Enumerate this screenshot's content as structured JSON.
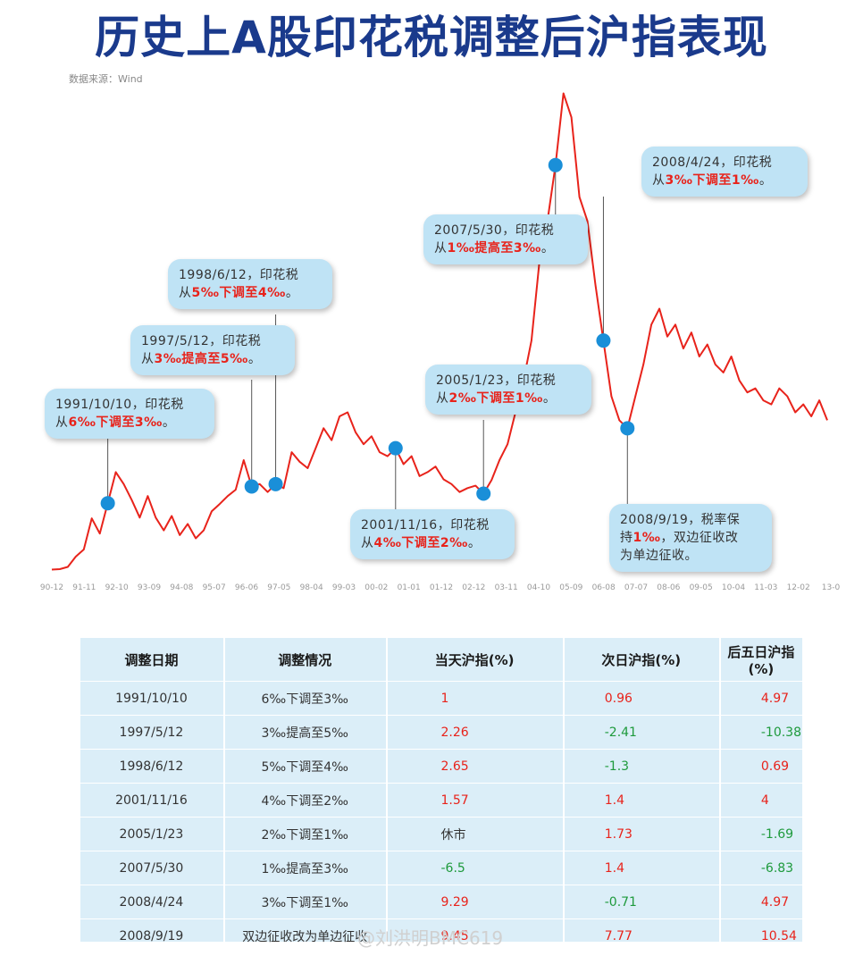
{
  "title": "历史上A股印花税调整后沪指表现",
  "source": "数据来源：Wind",
  "colors": {
    "line": "#e8231b",
    "marker": "#1a8fd8",
    "callout_bg": "#bfe3f5",
    "title": "#1a3a8c",
    "up": "#e8231b",
    "down": "#1e9a3c"
  },
  "chart_data": {
    "type": "line",
    "title": "历史上A股印花税调整后沪指表现",
    "xlabel": "",
    "ylabel": "",
    "x_ticks": [
      "90-12",
      "91-11",
      "92-10",
      "93-09",
      "94-08",
      "95-07",
      "96-06",
      "97-05",
      "98-04",
      "99-03",
      "00-02",
      "01-01",
      "01-12",
      "02-12",
      "03-11",
      "04-10",
      "05-09",
      "06-08",
      "07-07",
      "08-06",
      "09-05",
      "10-04",
      "11-03",
      "12-02",
      "13-0"
    ],
    "series": [
      {
        "values": [
          128,
          134,
          162,
          290,
          380,
          770,
          580,
          960,
          1350,
          1200,
          1000,
          780,
          1050,
          780,
          620,
          800,
          560,
          700,
          520,
          620,
          860,
          950,
          1050,
          1130,
          1500,
          1170,
          1200,
          1100,
          1200,
          1150,
          1600,
          1480,
          1400,
          1650,
          1900,
          1750,
          2050,
          2100,
          1850,
          1700,
          1800,
          1600,
          1550,
          1650,
          1450,
          1550,
          1300,
          1350,
          1420,
          1260,
          1200,
          1100,
          1150,
          1180,
          1080,
          1250,
          1500,
          1700,
          2100,
          2500,
          3000,
          4000,
          4500,
          5200,
          6100,
          5800,
          4800,
          4500,
          3700,
          3000,
          2300,
          2000,
          1900,
          2300,
          2700,
          3200,
          3400,
          3050,
          3200,
          2900,
          3100,
          2800,
          2950,
          2700,
          2600,
          2800,
          2500,
          2350,
          2400,
          2250,
          2200,
          2400,
          2300,
          2100,
          2200,
          2050,
          2250,
          2000
        ]
      }
    ],
    "events": [
      {
        "date": "1991/10/10",
        "change_prefix": "6‰",
        "change": "下调至3‰",
        "callout_line1": "1991/10/10，印花税",
        "callout_line2_pre": "从",
        "callout_line2_red": "6‰下调至3‰",
        "callout_line2_post": "。"
      },
      {
        "date": "1997/5/12",
        "callout_line1": "1997/5/12，印花税",
        "callout_line2_pre": "从",
        "callout_line2_red": "3‰提高至5‰",
        "callout_line2_post": "。"
      },
      {
        "date": "1998/6/12",
        "callout_line1": "1998/6/12，印花税",
        "callout_line2_pre": "从",
        "callout_line2_red": "5‰下调至4‰",
        "callout_line2_post": "。"
      },
      {
        "date": "2001/11/16",
        "callout_line1": "2001/11/16，印花税",
        "callout_line2_pre": "从",
        "callout_line2_red": "4‰下调至2‰",
        "callout_line2_post": "。"
      },
      {
        "date": "2005/1/23",
        "callout_line1": "2005/1/23，印花税",
        "callout_line2_pre": "从",
        "callout_line2_red": "2‰下调至1‰",
        "callout_line2_post": "。"
      },
      {
        "date": "2007/5/30",
        "callout_line1": "2007/5/30，印花税",
        "callout_line2_pre": "从",
        "callout_line2_red": "1‰提高至3‰",
        "callout_line2_post": "。"
      },
      {
        "date": "2008/4/24",
        "callout_line1": "2008/4/24，印花税",
        "callout_line2_pre": "从",
        "callout_line2_red": "3‰下调至1‰",
        "callout_line2_post": "。"
      },
      {
        "date": "2008/9/19",
        "callout_line1": "2008/9/19，税率保",
        "callout_line2_pre": "持",
        "callout_line2_red": "1‰",
        "callout_line2_post": "，双边征收改",
        "callout_line3": "为单边征收。"
      }
    ]
  },
  "table": {
    "headers": [
      "调整日期",
      "调整情况",
      "当天沪指(%)",
      "次日沪指(%)",
      "后五日沪指(%)"
    ],
    "rows": [
      [
        "1991/10/10",
        "6‰下调至3‰",
        "1",
        "0.96",
        "4.97"
      ],
      [
        "1997/5/12",
        "3‰提高至5‰",
        "2.26",
        "-2.41",
        "-10.38"
      ],
      [
        "1998/6/12",
        "5‰下调至4‰",
        "2.65",
        "-1.3",
        "0.69"
      ],
      [
        "2001/11/16",
        "4‰下调至2‰",
        "1.57",
        "1.4",
        "4"
      ],
      [
        "2005/1/23",
        "2‰下调至1‰",
        "休市",
        "1.73",
        "-1.69"
      ],
      [
        "2007/5/30",
        "1‰提高至3‰",
        "-6.5",
        "1.4",
        "-6.83"
      ],
      [
        "2008/4/24",
        "3‰下调至1‰",
        "9.29",
        "-0.71",
        "4.97"
      ],
      [
        "2008/9/19",
        "双边征收改为单边征收",
        "9.45",
        "7.77",
        "10.54"
      ]
    ]
  },
  "watermark": "@刘洪明BMC619"
}
